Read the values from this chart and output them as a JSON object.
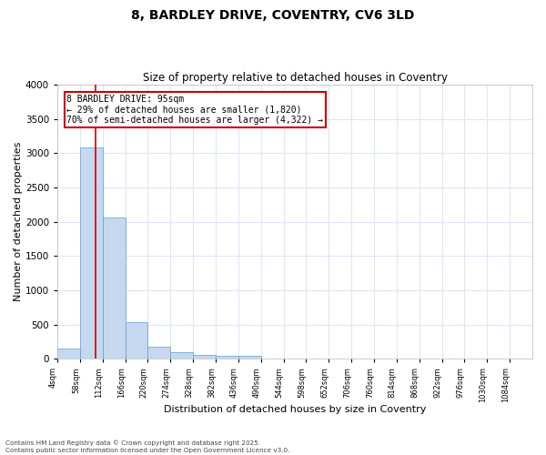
{
  "title_line1": "8, BARDLEY DRIVE, COVENTRY, CV6 3LD",
  "title_line2": "Size of property relative to detached houses in Coventry",
  "xlabel": "Distribution of detached houses by size in Coventry",
  "ylabel": "Number of detached properties",
  "bin_labels": [
    "4sqm",
    "58sqm",
    "112sqm",
    "166sqm",
    "220sqm",
    "274sqm",
    "328sqm",
    "382sqm",
    "436sqm",
    "490sqm",
    "544sqm",
    "598sqm",
    "652sqm",
    "706sqm",
    "760sqm",
    "814sqm",
    "868sqm",
    "922sqm",
    "976sqm",
    "1030sqm",
    "1084sqm"
  ],
  "bar_values": [
    155,
    3080,
    2060,
    530,
    180,
    90,
    50,
    40,
    40,
    0,
    0,
    0,
    0,
    0,
    0,
    0,
    0,
    0,
    0,
    0,
    0
  ],
  "bar_color": "#c5d8f0",
  "bar_edge_color": "#5a9fd4",
  "annotation_text": "8 BARDLEY DRIVE: 95sqm\n← 29% of detached houses are smaller (1,820)\n70% of semi-detached houses are larger (4,322) →",
  "annotation_box_color": "#ffffff",
  "annotation_box_edge_color": "#cc0000",
  "red_line_color": "#cc0000",
  "footer_line1": "Contains HM Land Registry data © Crown copyright and database right 2025.",
  "footer_line2": "Contains public sector information licensed under the Open Government Licence v3.0.",
  "ylim": [
    0,
    4000
  ],
  "yticks": [
    0,
    500,
    1000,
    1500,
    2000,
    2500,
    3000,
    3500,
    4000
  ],
  "background_color": "#ffffff",
  "grid_color": "#dce6f5"
}
